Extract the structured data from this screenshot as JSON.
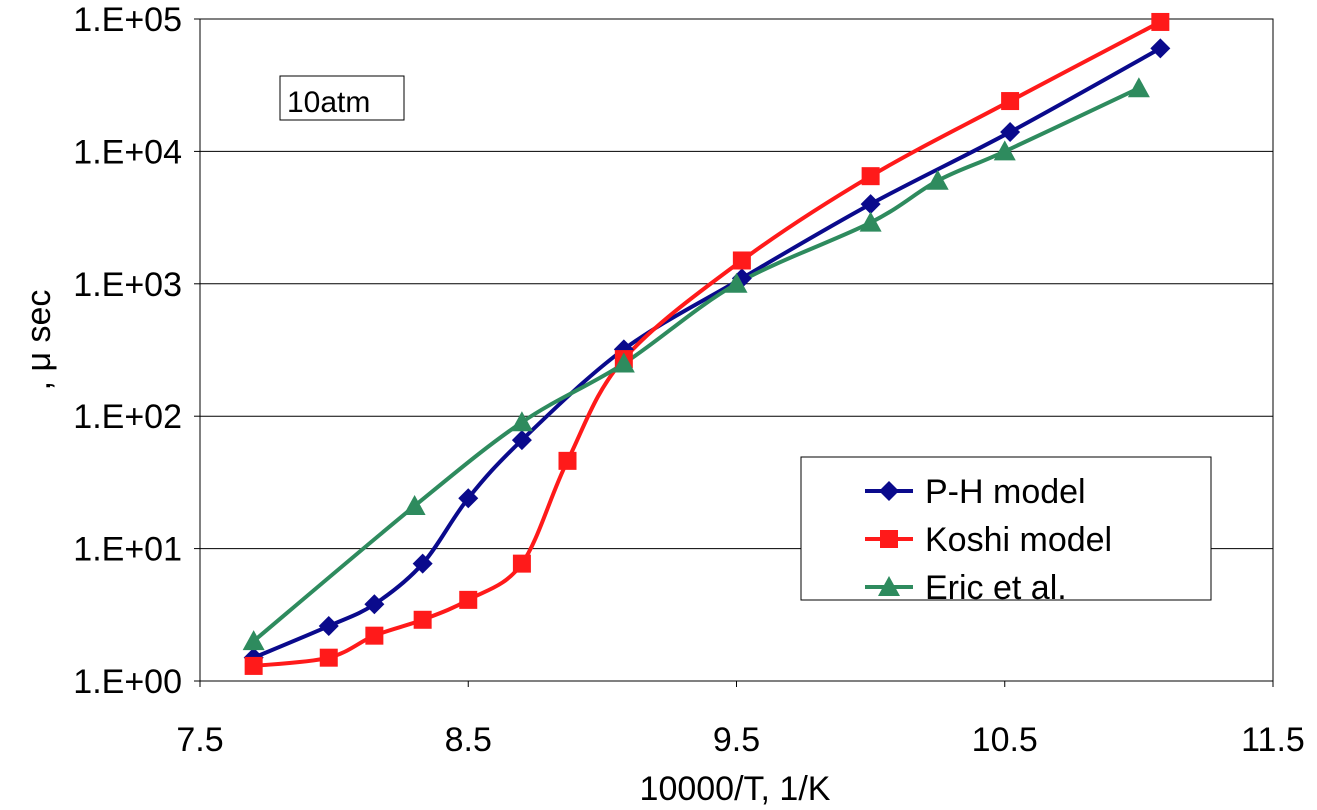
{
  "chart_data": {
    "type": "line",
    "title": "",
    "xlabel": "10000/T, 1/K",
    "ylabel": ", μ sec",
    "xlim": [
      7.5,
      11.5
    ],
    "ylim": [
      1,
      100000
    ],
    "yscale": "log",
    "x_ticks": [
      "7.5",
      "8.5",
      "9.5",
      "10.5",
      "11.5"
    ],
    "y_ticks": [
      "1.E+00",
      "1.E+01",
      "1.E+02",
      "1.E+03",
      "1.E+04",
      "1.E+05"
    ],
    "grid": "horizontal",
    "legend_position": "lower-right",
    "annotation": "10atm",
    "series": [
      {
        "name": "P-H model",
        "color": "#0a0a8c",
        "marker": "diamond",
        "points": [
          [
            7.7,
            1.5
          ],
          [
            7.98,
            2.6
          ],
          [
            8.15,
            3.8
          ],
          [
            8.33,
            7.7
          ],
          [
            8.5,
            24
          ],
          [
            8.7,
            66
          ],
          [
            9.08,
            320
          ],
          [
            9.52,
            1100
          ],
          [
            10.0,
            4000
          ],
          [
            10.52,
            14000
          ],
          [
            11.08,
            60000
          ]
        ]
      },
      {
        "name": "Koshi model",
        "color": "#ff1a1a",
        "marker": "square",
        "points": [
          [
            7.7,
            1.3
          ],
          [
            7.98,
            1.5
          ],
          [
            8.15,
            2.2
          ],
          [
            8.33,
            2.9
          ],
          [
            8.5,
            4.1
          ],
          [
            8.7,
            7.7
          ],
          [
            8.87,
            46
          ],
          [
            9.08,
            270
          ],
          [
            9.52,
            1500
          ],
          [
            10.0,
            6500
          ],
          [
            10.52,
            24000
          ],
          [
            11.08,
            95000
          ]
        ]
      },
      {
        "name": "Eric et al.",
        "color": "#2e8b5e",
        "marker": "triangle",
        "points": [
          [
            7.7,
            2.0
          ],
          [
            8.3,
            21
          ],
          [
            8.7,
            90
          ],
          [
            9.08,
            250
          ],
          [
            9.5,
            1000
          ],
          [
            10.0,
            2900
          ],
          [
            10.25,
            6000
          ],
          [
            10.5,
            10000
          ],
          [
            11.0,
            30000
          ]
        ]
      }
    ]
  }
}
